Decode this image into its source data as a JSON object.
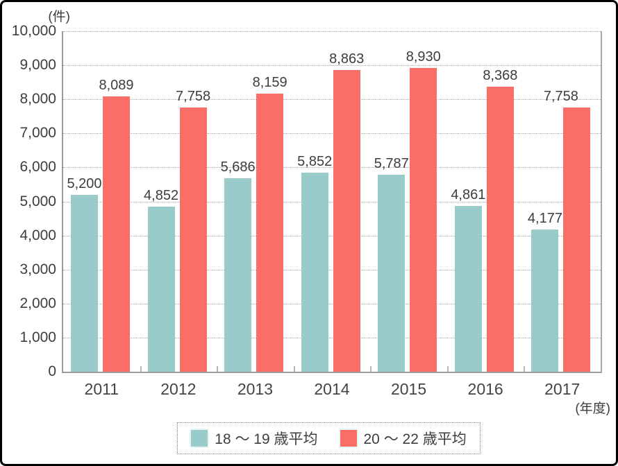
{
  "y_axis_unit": "(件)",
  "x_axis_unit": "(年度)",
  "legend": [
    {
      "label": "18 ～ 19 歳平均",
      "color": "#9ACBCB"
    },
    {
      "label": "20 ～ 22 歳平均",
      "color": "#FA6E67"
    }
  ],
  "chart_data": {
    "type": "bar",
    "title": "",
    "xlabel": "(年度)",
    "ylabel": "(件)",
    "categories": [
      "2011",
      "2012",
      "2013",
      "2014",
      "2015",
      "2016",
      "2017"
    ],
    "series": [
      {
        "name": "18 ～ 19 歳平均",
        "color": "#9ACBCB",
        "values": [
          5200,
          4852,
          5686,
          5852,
          5787,
          4861,
          4177
        ],
        "labels": [
          "5,200",
          "4,852",
          "5,686",
          "5,852",
          "5,787",
          "4,861",
          "4,177"
        ]
      },
      {
        "name": "20 ～ 22 歳平均",
        "color": "#FA6E67",
        "values": [
          8089,
          7758,
          8159,
          8863,
          8930,
          8368,
          7758
        ],
        "labels": [
          "8,089",
          "7,758",
          "8,159",
          "8,863",
          "8,930",
          "8,368",
          "7,758"
        ]
      }
    ],
    "ylim": [
      0,
      10000
    ],
    "ytick_interval": 1000,
    "ytick_labels": [
      "0",
      "1,000",
      "2,000",
      "3,000",
      "4,000",
      "5,000",
      "6,000",
      "7,000",
      "8,000",
      "9,000",
      "10,000"
    ],
    "grid": "horizontal-dotted",
    "legend_position": "bottom"
  }
}
